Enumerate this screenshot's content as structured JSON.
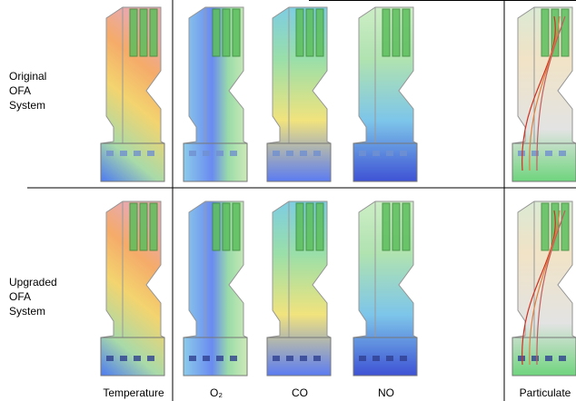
{
  "rows": [
    {
      "label_lines": [
        "Original",
        "OFA",
        "System"
      ]
    },
    {
      "label_lines": [
        "Upgraded",
        "OFA",
        "System"
      ]
    }
  ],
  "columns": [
    "Temperature",
    "O₂",
    "CO",
    "NO",
    "Particulate"
  ]
}
